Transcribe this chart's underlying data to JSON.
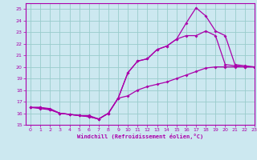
{
  "xlabel": "Windchill (Refroidissement éolien,°C)",
  "xlim": [
    -0.5,
    23
  ],
  "ylim": [
    15,
    25.5
  ],
  "xticks": [
    0,
    1,
    2,
    3,
    4,
    5,
    6,
    7,
    8,
    9,
    10,
    11,
    12,
    13,
    14,
    15,
    16,
    17,
    18,
    19,
    20,
    21,
    22,
    23
  ],
  "yticks": [
    15,
    16,
    17,
    18,
    19,
    20,
    21,
    22,
    23,
    24,
    25
  ],
  "bg_color": "#cce8f0",
  "line_color": "#aa00aa",
  "grid_color": "#99cccc",
  "line1_x": [
    0,
    1,
    2,
    3,
    4,
    5,
    6,
    7,
    8,
    9,
    10,
    11,
    12,
    13,
    14,
    15,
    16,
    17,
    18,
    19,
    20,
    21,
    22,
    23
  ],
  "line1_y": [
    16.5,
    16.5,
    16.3,
    16.0,
    15.9,
    15.8,
    15.8,
    15.5,
    16.0,
    17.3,
    17.5,
    18.0,
    18.3,
    18.5,
    18.7,
    19.0,
    19.3,
    19.6,
    19.9,
    20.0,
    20.0,
    20.0,
    20.0,
    20.0
  ],
  "line2_x": [
    0,
    1,
    2,
    3,
    4,
    5,
    6,
    7,
    8,
    9,
    10,
    11,
    12,
    13,
    14,
    15,
    16,
    17,
    18,
    19,
    20,
    21,
    22,
    23
  ],
  "line2_y": [
    16.5,
    16.4,
    16.3,
    16.0,
    15.9,
    15.8,
    15.7,
    15.5,
    16.0,
    17.3,
    19.5,
    20.5,
    20.7,
    21.5,
    21.8,
    22.4,
    22.7,
    22.7,
    23.1,
    22.7,
    20.2,
    20.1,
    20.0,
    20.0
  ],
  "line3_x": [
    0,
    1,
    2,
    3,
    4,
    5,
    6,
    7,
    8,
    9,
    10,
    11,
    12,
    13,
    14,
    15,
    16,
    17,
    18,
    19,
    20,
    21,
    22,
    23
  ],
  "line3_y": [
    16.5,
    16.5,
    16.4,
    16.0,
    15.9,
    15.8,
    15.7,
    15.5,
    16.0,
    17.3,
    19.5,
    20.5,
    20.7,
    21.5,
    21.8,
    22.4,
    23.8,
    25.1,
    24.4,
    23.1,
    22.7,
    20.2,
    20.1,
    20.0
  ]
}
